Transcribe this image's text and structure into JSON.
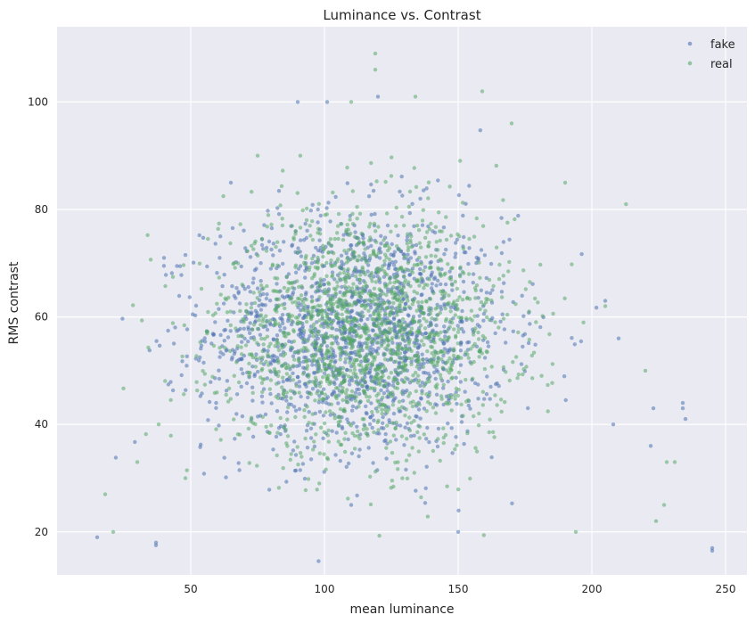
{
  "chart_data": {
    "type": "scatter",
    "title": "Luminance vs. Contrast",
    "xlabel": "mean luminance",
    "ylabel": "RMS contrast",
    "xlim": [
      0,
      258
    ],
    "ylim": [
      12,
      114
    ],
    "xticks": [
      50,
      100,
      150,
      200,
      250
    ],
    "yticks": [
      20,
      40,
      60,
      80,
      100
    ],
    "grid": true,
    "legend_position": "top-right",
    "series": [
      {
        "name": "fake",
        "color": "#4c72b0",
        "distribution": {
          "center": [
            112,
            57
          ],
          "spread": [
            28,
            11
          ],
          "core_count": 1600
        },
        "notable_points": [
          [
            15,
            19
          ],
          [
            37,
            18
          ],
          [
            37,
            17.5
          ],
          [
            245,
            17
          ],
          [
            245,
            16.5
          ],
          [
            234,
            44
          ],
          [
            234,
            43
          ],
          [
            235,
            41
          ],
          [
            90,
            100
          ],
          [
            101,
            100
          ],
          [
            120,
            101
          ],
          [
            223,
            43
          ],
          [
            222,
            36
          ],
          [
            208,
            40
          ],
          [
            150,
            20
          ],
          [
            40,
            71
          ],
          [
            205,
            63
          ],
          [
            210,
            56
          ],
          [
            110,
            25
          ],
          [
            65,
            85
          ]
        ]
      },
      {
        "name": "real",
        "color": "#55a868",
        "distribution": {
          "center": [
            115,
            57
          ],
          "spread": [
            27,
            11
          ],
          "core_count": 1700
        },
        "notable_points": [
          [
            18,
            27
          ],
          [
            21,
            20
          ],
          [
            38,
            40
          ],
          [
            119,
            109
          ],
          [
            119,
            106
          ],
          [
            134,
            101
          ],
          [
            159,
            102
          ],
          [
            224,
            22
          ],
          [
            227,
            25
          ],
          [
            194,
            20
          ],
          [
            190,
            85
          ],
          [
            228,
            33
          ],
          [
            231,
            33
          ],
          [
            205,
            62
          ],
          [
            75,
            90
          ],
          [
            220,
            50
          ],
          [
            48,
            30
          ],
          [
            30,
            33
          ],
          [
            110,
            100
          ],
          [
            170,
            96
          ]
        ]
      }
    ]
  }
}
